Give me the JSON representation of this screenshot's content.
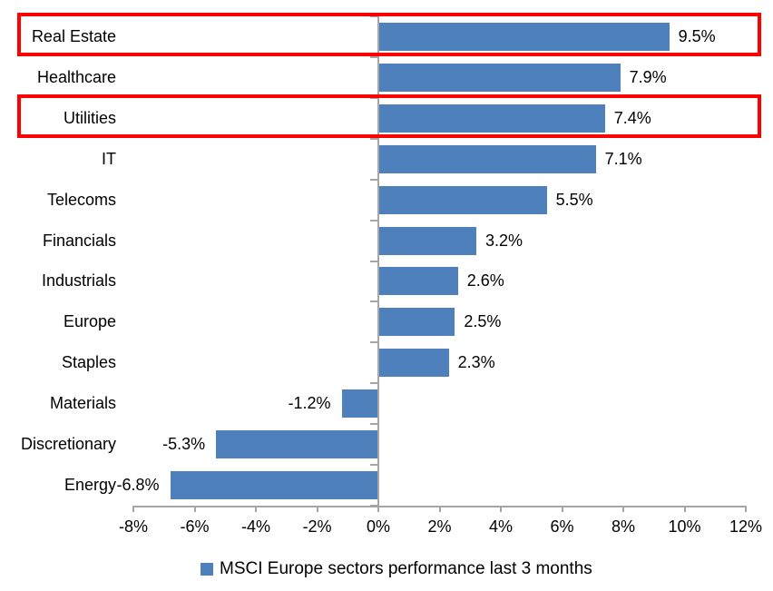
{
  "chart_data": {
    "type": "bar",
    "orientation": "horizontal",
    "title": "",
    "categories": [
      "Real Estate",
      "Healthcare",
      "Utilities",
      "IT",
      "Telecoms",
      "Financials",
      "Industrials",
      "Europe",
      "Staples",
      "Materials",
      "Discretionary",
      "Energy"
    ],
    "values": [
      9.5,
      7.9,
      7.4,
      7.1,
      5.5,
      3.2,
      2.6,
      2.5,
      2.3,
      -1.2,
      -5.3,
      -6.8
    ],
    "value_labels": [
      "9.5%",
      "7.9%",
      "7.4%",
      "7.1%",
      "5.5%",
      "3.2%",
      "2.6%",
      "2.5%",
      "2.3%",
      "-1.2%",
      "-5.3%",
      "-6.8%"
    ],
    "xlim": [
      -8,
      12
    ],
    "x_ticks": {
      "values": [
        -8,
        -6,
        -4,
        -2,
        0,
        2,
        4,
        6,
        8,
        10,
        12
      ],
      "labels": [
        "-8%",
        "-6%",
        "-4%",
        "-2%",
        "0%",
        "2%",
        "4%",
        "6%",
        "8%",
        "10%",
        "12%"
      ]
    },
    "grid": false,
    "legend": {
      "label": "MSCI Europe sectors performance last 3 months",
      "position": "bottom-center"
    },
    "colors": {
      "bar": "#4e81bc",
      "axis": "#a6a6a6",
      "highlight": "#ff0000",
      "text": "#000000"
    },
    "highlights": {
      "categories": [
        "Real Estate",
        "Utilities"
      ]
    }
  }
}
